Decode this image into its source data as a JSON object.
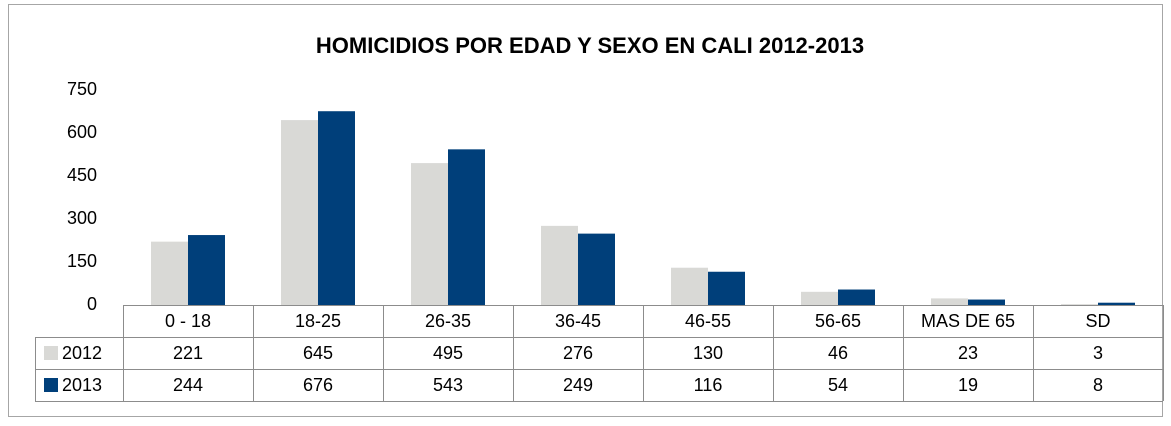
{
  "chart_data": {
    "type": "bar",
    "title": "HOMICIDIOS POR EDAD Y SEXO EN CALI 2012-2013",
    "categories": [
      "0 - 18",
      "18-25",
      "26-35",
      "36-45",
      "46-55",
      "56-65",
      "MAS DE 65",
      "SD"
    ],
    "series": [
      {
        "name": "2012",
        "color": "#d9d9d6",
        "values": [
          221,
          645,
          495,
          276,
          130,
          46,
          23,
          3
        ]
      },
      {
        "name": "2013",
        "color": "#003f7a",
        "values": [
          244,
          676,
          543,
          249,
          116,
          54,
          19,
          8
        ]
      }
    ],
    "ylim": [
      0,
      750
    ],
    "yticks": [
      0,
      150,
      300,
      450,
      600,
      750
    ],
    "grid": false,
    "data_table": true
  }
}
